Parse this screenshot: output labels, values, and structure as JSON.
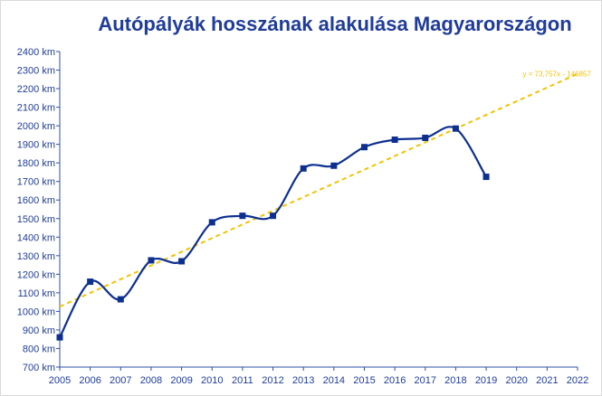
{
  "chart_data": {
    "type": "line",
    "title": "Autópályák hosszának alakulása Magyarországon",
    "xlabel": "",
    "ylabel": "",
    "xlim": [
      2005,
      2022
    ],
    "ylim": [
      700,
      2400
    ],
    "y_unit": "km",
    "x_ticks": [
      2005,
      2006,
      2007,
      2008,
      2009,
      2010,
      2011,
      2012,
      2013,
      2014,
      2015,
      2016,
      2017,
      2018,
      2019,
      2020,
      2021,
      2022
    ],
    "y_ticks": [
      700,
      800,
      900,
      1000,
      1100,
      1200,
      1300,
      1400,
      1500,
      1600,
      1700,
      1800,
      1900,
      2000,
      2100,
      2200,
      2300,
      2400
    ],
    "y_tick_labels": [
      "700 km",
      "800 km",
      "900 km",
      "1000 km",
      "1100 km",
      "1200 km",
      "1300 km",
      "1400 km",
      "1500 km",
      "1600 km",
      "1700 km",
      "1800 km",
      "1900 km",
      "2000 km",
      "2100 km",
      "2200 km",
      "2300 km",
      "2400 km"
    ],
    "series": [
      {
        "x": [
          2005,
          2006,
          2007,
          2008,
          2009,
          2010,
          2011,
          2012,
          2013,
          2014,
          2015,
          2016,
          2017,
          2018,
          2019
        ],
        "values": [
          860,
          1160,
          1065,
          1275,
          1270,
          1480,
          1515,
          1515,
          1770,
          1785,
          1885,
          1925,
          1935,
          1985,
          1725
        ],
        "color": "#0d2f8f",
        "smooth": true,
        "marker": "square"
      }
    ],
    "trendline": {
      "equation": "y = 73,757x - 146857",
      "slope": 73.757,
      "intercept": -146857,
      "x_range": [
        2005,
        2022
      ],
      "color": "#f2c300",
      "style": "dashed"
    },
    "grid": false,
    "legend": "none"
  }
}
